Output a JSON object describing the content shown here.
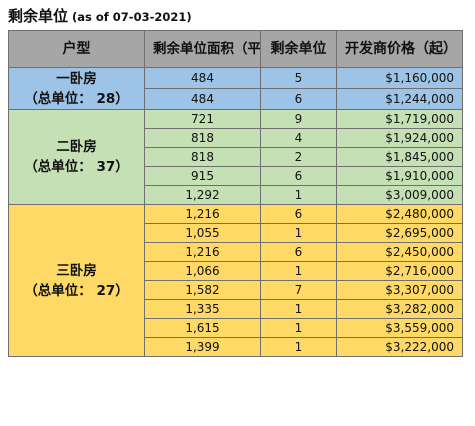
{
  "title": {
    "main": "剩余单位",
    "sub": " (as of 07-03-2021)"
  },
  "table": {
    "headers": {
      "type": "户型",
      "area": "剩余单位面积（平方尺）",
      "units": "剩余单位",
      "price": "开发商价格（起）"
    },
    "groups": [
      {
        "name": "一卧房",
        "total": "（总单位：  28）",
        "color": "#9dc3e6",
        "rows": [
          {
            "area": "484",
            "units": "5",
            "price": "$1,160,000"
          },
          {
            "area": "484",
            "units": "6",
            "price": "$1,244,000"
          }
        ]
      },
      {
        "name": "二卧房",
        "total": "（总单位：  37）",
        "color": "#c5e0b4",
        "rows": [
          {
            "area": "721",
            "units": "9",
            "price": "$1,719,000"
          },
          {
            "area": "818",
            "units": "4",
            "price": "$1,924,000"
          },
          {
            "area": "818",
            "units": "2",
            "price": "$1,845,000"
          },
          {
            "area": "915",
            "units": "6",
            "price": "$1,910,000"
          },
          {
            "area": "1,292",
            "units": "1",
            "price": "$3,009,000"
          }
        ]
      },
      {
        "name": "三卧房",
        "total": "（总单位：  27）",
        "color": "#ffd966",
        "rows": [
          {
            "area": "1,216",
            "units": "6",
            "price": "$2,480,000"
          },
          {
            "area": "1,055",
            "units": "1",
            "price": "$2,695,000"
          },
          {
            "area": "1,216",
            "units": "6",
            "price": "$2,450,000"
          },
          {
            "area": "1,066",
            "units": "1",
            "price": "$2,716,000"
          },
          {
            "area": "1,582",
            "units": "7",
            "price": "$3,307,000"
          },
          {
            "area": "1,335",
            "units": "1",
            "price": "$3,282,000"
          },
          {
            "area": "1,615",
            "units": "1",
            "price": "$3,559,000"
          },
          {
            "area": "1,399",
            "units": "1",
            "price": "$3,222,000"
          }
        ]
      }
    ]
  }
}
